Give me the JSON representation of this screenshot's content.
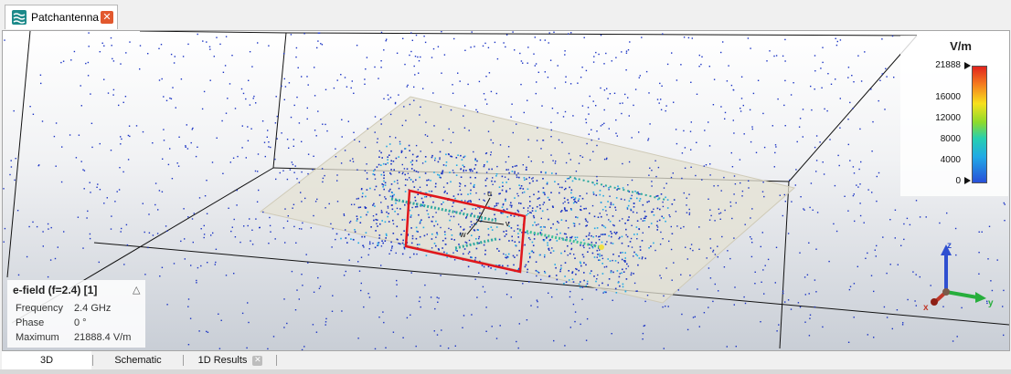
{
  "document_tab": {
    "label": "Patchantenna",
    "icon": "patch-antenna-icon",
    "close_icon": "close-icon",
    "close_glyph": "✕"
  },
  "legend": {
    "unit": "V/m",
    "ticks": [
      "21888",
      "16000",
      "12000",
      "8000",
      "4000",
      "0"
    ],
    "colors": [
      "#e0231d",
      "#f47a1e",
      "#f7e11d",
      "#8edb2b",
      "#27cfb0",
      "#22a9e6",
      "#2850d9"
    ]
  },
  "info": {
    "title": "e-field (f=2.4) [1]",
    "collapse_glyph": "△",
    "rows": [
      {
        "label": "Frequency",
        "value": "2.4 GHz"
      },
      {
        "label": "Phase",
        "value": "0 °"
      },
      {
        "label": "Maximum",
        "value": "21888.4 V/m"
      }
    ]
  },
  "axes": {
    "x": "x",
    "y": "y",
    "z": "z",
    "colors": {
      "x": "#c0392b",
      "y": "#27ae3c",
      "z": "#2f4fd0"
    }
  },
  "probe_axes": {
    "u": "u",
    "v": "v",
    "w": "w"
  },
  "bottom_tabs": [
    {
      "label": "3D",
      "active": true
    },
    {
      "label": "Schematic",
      "active": false
    },
    {
      "label": "1D Results",
      "active": false,
      "close_glyph": "✕"
    }
  ],
  "colors": {
    "selection_outline": "#e0161b",
    "substrate": "#e4e1d3",
    "field_dots": "#1a33c4"
  }
}
